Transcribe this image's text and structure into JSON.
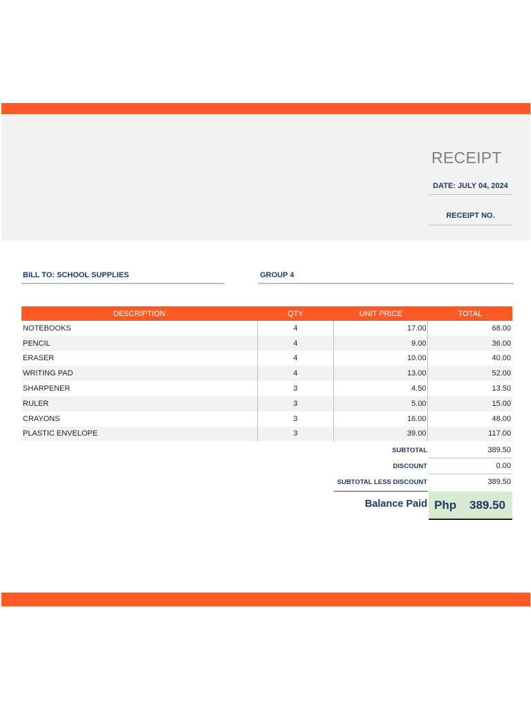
{
  "colors": {
    "accent": "#ff5a26",
    "panel": "#f2f2f2",
    "label_text": "#1f3864",
    "balance_bg": "#d9ead3"
  },
  "header": {
    "title": "RECEIPT",
    "date": "DATE: JULY 04, 2024",
    "receipt_no": "RECEIPT NO."
  },
  "bill": {
    "bill_to": "BILL TO: SCHOOL SUPPLIES",
    "group": "GROUP 4"
  },
  "table": {
    "headers": {
      "description": "DESCRIPTION",
      "qty": "QTY",
      "unit_price": "UNIT PRICE",
      "total": "TOTAL"
    },
    "rows": [
      {
        "description": "NOTEBOOKS",
        "qty": "4",
        "unit_price": "17.00",
        "total": "68.00"
      },
      {
        "description": "PENCIL",
        "qty": "4",
        "unit_price": "9.00",
        "total": "36.00"
      },
      {
        "description": "ERASER",
        "qty": "4",
        "unit_price": "10.00",
        "total": "40.00"
      },
      {
        "description": "WRITING PAD",
        "qty": "4",
        "unit_price": "13.00",
        "total": "52.00"
      },
      {
        "description": "SHARPENER",
        "qty": "3",
        "unit_price": "4.50",
        "total": "13.50"
      },
      {
        "description": "RULER",
        "qty": "3",
        "unit_price": "5.00",
        "total": "15.00"
      },
      {
        "description": "CRAYONS",
        "qty": "3",
        "unit_price": "16.00",
        "total": "48.00"
      },
      {
        "description": "PLASTIC ENVELOPE",
        "qty": "3",
        "unit_price": "39.00",
        "total": "117.00"
      }
    ]
  },
  "summary": {
    "subtotal_label": "SUBTOTAL",
    "subtotal": "389.50",
    "discount_label": "DISCOUNT",
    "discount": "0.00",
    "less_label": "SUBTOTAL LESS DISCOUNT",
    "less": "389.50",
    "balance_label": "Balance Paid",
    "currency": "Php",
    "balance": "389.50"
  }
}
